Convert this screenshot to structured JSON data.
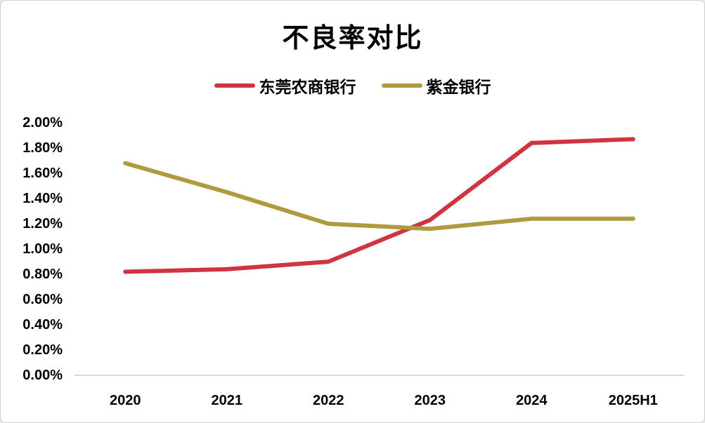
{
  "chart_data": {
    "type": "line",
    "title": "不良率对比",
    "categories": [
      "2020",
      "2021",
      "2022",
      "2023",
      "2024",
      "2025H1"
    ],
    "series": [
      {
        "name": "东莞农商银行",
        "color": "#D1333F",
        "values": [
          0.82,
          0.84,
          0.9,
          1.23,
          1.84,
          1.87
        ]
      },
      {
        "name": "紫金银行",
        "color": "#AE9A3F",
        "values": [
          1.68,
          1.45,
          1.2,
          1.16,
          1.24,
          1.24
        ]
      }
    ],
    "ylim": [
      0,
      2
    ],
    "ytick_step": 0.2,
    "ytick_labels": [
      "0.00%",
      "0.20%",
      "0.40%",
      "0.60%",
      "0.80%",
      "1.00%",
      "1.20%",
      "1.40%",
      "1.60%",
      "1.80%",
      "2.00%"
    ],
    "ytick_format": "percent",
    "xlabel": "",
    "ylabel": "",
    "grid": false,
    "legend_position": "top-center",
    "axis_line_color": "#D9D9D9",
    "background_color": "#FFFFFF",
    "text_color": "#000000"
  }
}
